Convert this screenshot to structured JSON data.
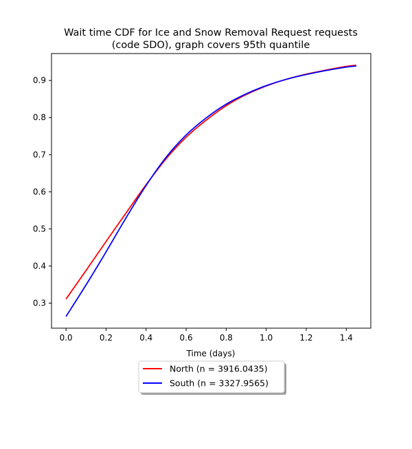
{
  "chart_data": {
    "type": "line",
    "title_lines": [
      "Wait time CDF for Ice and Snow Removal Request  requests",
      "(code SDO), graph covers 95th quantile"
    ],
    "xlabel": "Time (days)",
    "ylabel": "",
    "xlim": [
      -0.0725,
      1.5225
    ],
    "ylim": [
      0.2325,
      0.9725
    ],
    "x_ticks": [
      0.0,
      0.2,
      0.4,
      0.6,
      0.8,
      1.0,
      1.2,
      1.4
    ],
    "y_ticks": [
      0.3,
      0.4,
      0.5,
      0.6,
      0.7,
      0.8,
      0.9
    ],
    "legend_position": "below plot, centered",
    "grid": false,
    "series": [
      {
        "name": "North (n = 3916.0435)",
        "color": "#ff0000",
        "x": [
          0.0,
          0.1,
          0.2,
          0.3,
          0.4,
          0.5,
          0.6,
          0.7,
          0.8,
          0.9,
          1.0,
          1.1,
          1.2,
          1.3,
          1.4,
          1.45
        ],
        "y": [
          0.311,
          0.388,
          0.466,
          0.543,
          0.619,
          0.689,
          0.747,
          0.793,
          0.832,
          0.862,
          0.885,
          0.903,
          0.917,
          0.928,
          0.938,
          0.941
        ]
      },
      {
        "name": "South (n = 3327.9565)",
        "color": "#0000ff",
        "x": [
          0.0,
          0.1,
          0.2,
          0.3,
          0.4,
          0.5,
          0.6,
          0.7,
          0.8,
          0.9,
          1.0,
          1.1,
          1.2,
          1.3,
          1.4,
          1.45
        ],
        "y": [
          0.264,
          0.349,
          0.438,
          0.53,
          0.617,
          0.693,
          0.753,
          0.799,
          0.836,
          0.864,
          0.886,
          0.903,
          0.916,
          0.927,
          0.936,
          0.939
        ]
      }
    ]
  }
}
